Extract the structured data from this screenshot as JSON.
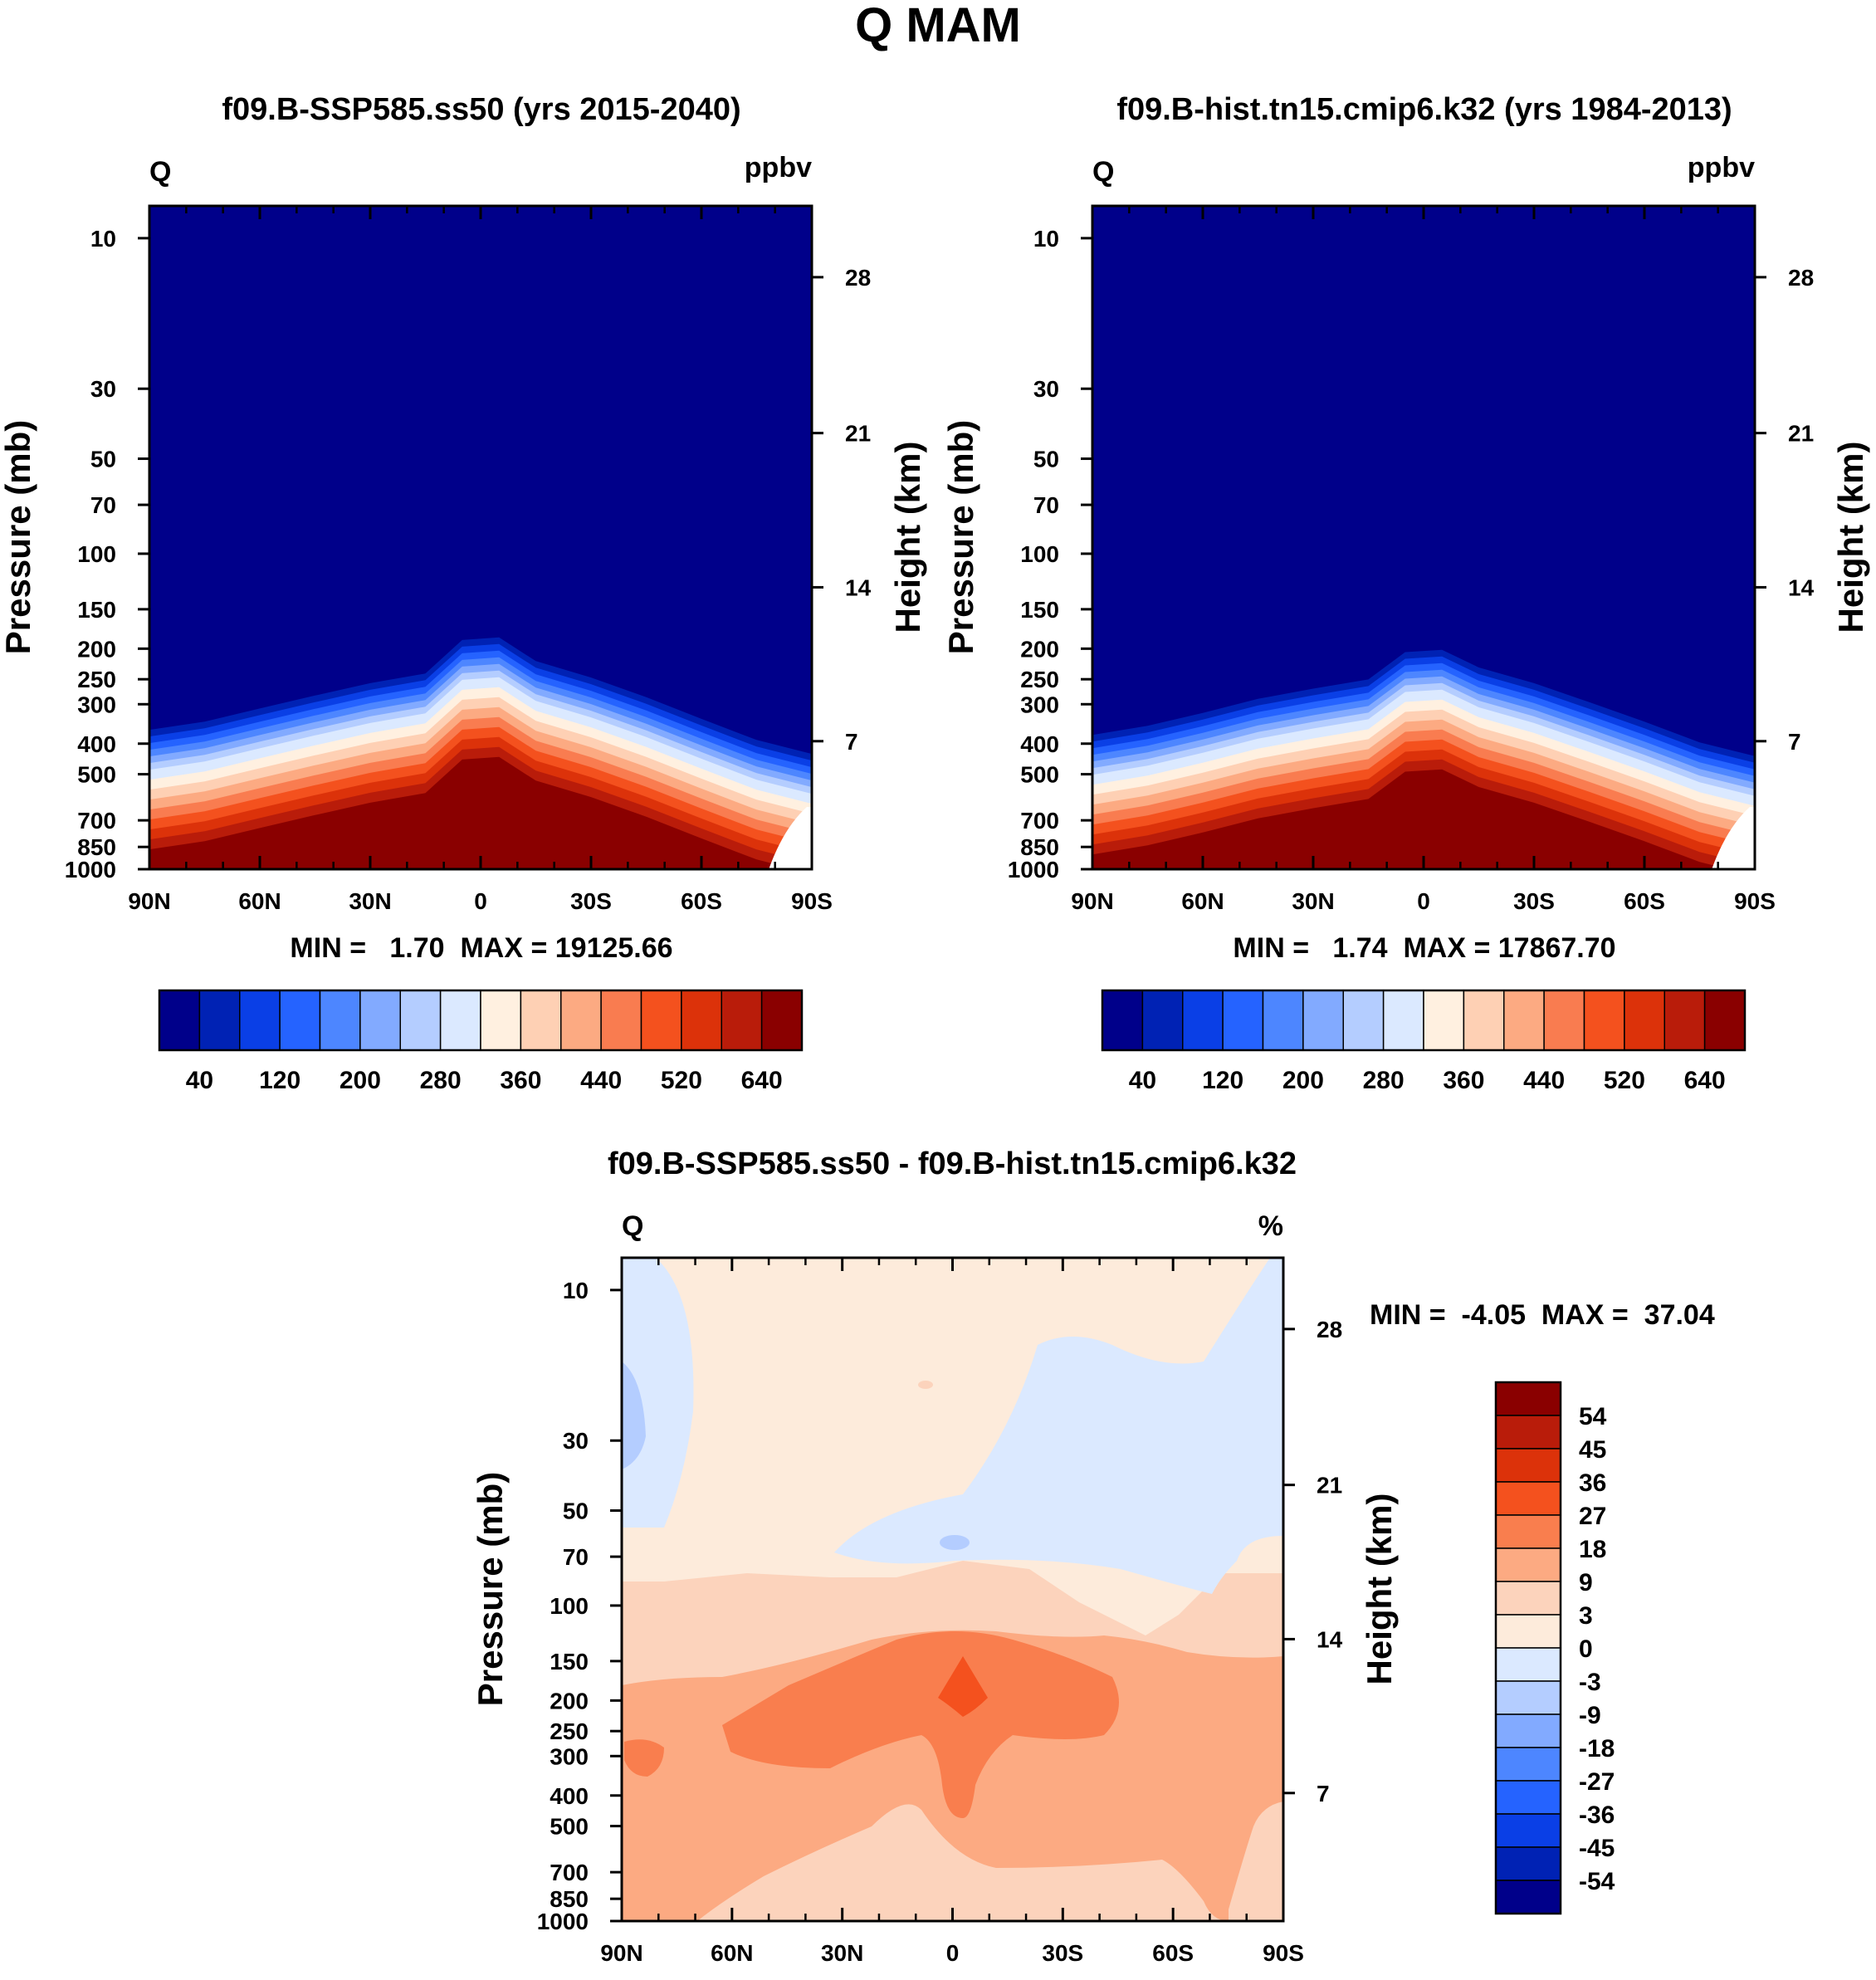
{
  "main_title": "Q MAM",
  "colors": {
    "ppbv_palette": [
      "#00008a",
      "#0022b4",
      "#0a3fe6",
      "#2563ff",
      "#4d86ff",
      "#82aaff",
      "#b4cdff",
      "#dbe9ff",
      "#fff0e0",
      "#fed0b4",
      "#fcaa82",
      "#f97c50",
      "#f4511e",
      "#dc320a",
      "#b91c0a",
      "#8a0000"
    ],
    "diff_palette": [
      "#00008a",
      "#0022b4",
      "#0a3fe6",
      "#2563ff",
      "#4d86ff",
      "#82aaff",
      "#b4cdff",
      "#dbe9ff",
      "#fdebdb",
      "#fcd3bc",
      "#fcaa82",
      "#f97e4e",
      "#f4511e",
      "#dc320a",
      "#b91c0a",
      "#8a0000"
    ]
  },
  "panels": {
    "left": {
      "title": "f09.B-SSP585.ss50 (yrs 2015-2040)",
      "var_label": "Q",
      "units": "ppbv",
      "min_max": "MIN =   1.70  MAX = 19125.66"
    },
    "right": {
      "title": "f09.B-hist.tn15.cmip6.k32 (yrs 1984-2013)",
      "var_label": "Q",
      "units": "ppbv",
      "min_max": "MIN =   1.74  MAX = 17867.70"
    },
    "bottom": {
      "title": "f09.B-SSP585.ss50 - f09.B-hist.tn15.cmip6.k32",
      "var_label": "Q",
      "units": "%",
      "min_max": "MIN =  -4.05  MAX =  37.04"
    }
  },
  "axis_labels": {
    "left_y": "Pressure (mb)",
    "right_y": "Height (km)"
  },
  "chart_data": [
    {
      "type": "heatmap",
      "title": "f09.B-SSP585.ss50 (yrs 2015-2040)",
      "ylabel": "Pressure (mb)",
      "y2label": "Height (km)",
      "x_ticks": [
        "90N",
        "60N",
        "30N",
        "0",
        "30S",
        "60S",
        "90S"
      ],
      "x_values": [
        90,
        60,
        30,
        0,
        -30,
        -60,
        -90
      ],
      "y_ticks": [
        "10",
        "30",
        "50",
        "70",
        "100",
        "150",
        "200",
        "250",
        "300",
        "400",
        "500",
        "700",
        "850",
        "1000"
      ],
      "y2_ticks": [
        "28",
        "21",
        "14",
        "7"
      ],
      "colorbar_labels": [
        "40",
        "120",
        "200",
        "280",
        "360",
        "440",
        "520",
        "640"
      ],
      "min": 1.7,
      "max": 19125.66,
      "tropopause_lat": [
        90,
        75,
        60,
        45,
        30,
        15,
        5,
        -5,
        -15,
        -30,
        -45,
        -60,
        -75,
        -90
      ],
      "tropopause_p": [
        520,
        490,
        445,
        405,
        370,
        345,
        270,
        265,
        315,
        355,
        410,
        480,
        560,
        620
      ]
    },
    {
      "type": "heatmap",
      "title": "f09.B-hist.tn15.cmip6.k32 (yrs 1984-2013)",
      "ylabel": "Pressure (mb)",
      "y2label": "Height (km)",
      "x_ticks": [
        "90N",
        "60N",
        "30N",
        "0",
        "30S",
        "60S",
        "90S"
      ],
      "x_values": [
        90,
        60,
        30,
        0,
        -30,
        -60,
        -90
      ],
      "y_ticks": [
        "10",
        "30",
        "50",
        "70",
        "100",
        "150",
        "200",
        "250",
        "300",
        "400",
        "500",
        "700",
        "850",
        "1000"
      ],
      "y2_ticks": [
        "28",
        "21",
        "14",
        "7"
      ],
      "colorbar_labels": [
        "40",
        "120",
        "200",
        "280",
        "360",
        "440",
        "520",
        "640"
      ],
      "min": 1.74,
      "max": 17867.7,
      "tropopause_lat": [
        90,
        75,
        60,
        45,
        30,
        15,
        5,
        -5,
        -15,
        -30,
        -45,
        -60,
        -75,
        -90
      ],
      "tropopause_p": [
        540,
        505,
        460,
        415,
        385,
        360,
        295,
        290,
        330,
        370,
        425,
        490,
        570,
        630
      ]
    },
    {
      "type": "heatmap",
      "title": "f09.B-SSP585.ss50 - f09.B-hist.tn15.cmip6.k32",
      "ylabel": "Pressure (mb)",
      "y2label": "Height (km)",
      "x_ticks": [
        "90N",
        "60N",
        "30N",
        "0",
        "30S",
        "60S",
        "90S"
      ],
      "x_values": [
        90,
        60,
        30,
        0,
        -30,
        -60,
        -90
      ],
      "y_ticks": [
        "10",
        "30",
        "50",
        "70",
        "100",
        "150",
        "200",
        "250",
        "300",
        "400",
        "500",
        "700",
        "850",
        "1000"
      ],
      "y2_ticks": [
        "28",
        "21",
        "14",
        "7"
      ],
      "colorbar_labels": [
        "54",
        "45",
        "36",
        "27",
        "18",
        "9",
        "3",
        "0",
        "-3",
        "-9",
        "-18",
        "-27",
        "-36",
        "-45",
        "-54"
      ],
      "min": -4.05,
      "max": 37.04
    }
  ]
}
